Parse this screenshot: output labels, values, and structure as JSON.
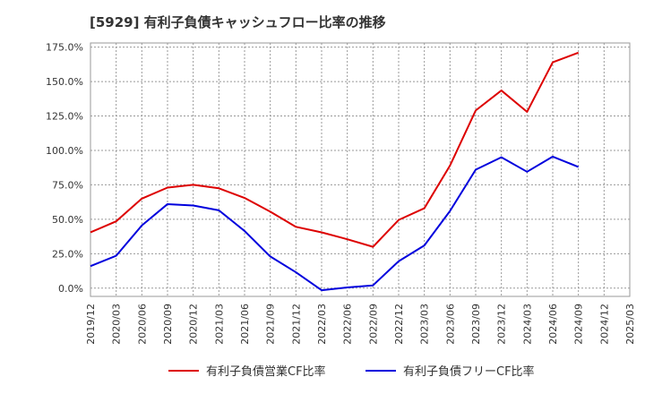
{
  "title": "[5929]  有利子負債キャッシュフロー比率の推移",
  "chart_data": {
    "type": "line",
    "title": "[5929]  有利子負債キャッシュフロー比率の推移",
    "xlabel": "",
    "ylabel": "",
    "x": [
      "2019/12",
      "2020/03",
      "2020/06",
      "2020/09",
      "2020/12",
      "2021/03",
      "2021/06",
      "2021/09",
      "2021/12",
      "2022/03",
      "2022/06",
      "2022/09",
      "2022/12",
      "2023/03",
      "2023/06",
      "2023/09",
      "2023/12",
      "2024/03",
      "2024/06",
      "2024/09",
      "2024/12",
      "2025/03"
    ],
    "ylim": [
      -6,
      178
    ],
    "yticks": [
      "0.0%",
      "25.0%",
      "50.0%",
      "75.0%",
      "100.0%",
      "125.0%",
      "150.0%",
      "175.0%"
    ],
    "ytick_values": [
      0,
      25,
      50,
      75,
      100,
      125,
      150,
      175
    ],
    "grid": true,
    "legend_position": "bottom",
    "series": [
      {
        "name": "有利子負債営業CF比率",
        "color": "#dd0000",
        "values": [
          40.5,
          48.5,
          65.0,
          73.0,
          75.0,
          72.5,
          65.5,
          55.5,
          44.5,
          40.5,
          35.5,
          30.0,
          49.5,
          58.0,
          89.0,
          129.0,
          143.5,
          128.0,
          164.0,
          171.0,
          null,
          null
        ]
      },
      {
        "name": "有利子負債フリーCF比率",
        "color": "#0000dd",
        "values": [
          16.0,
          23.5,
          45.5,
          61.0,
          60.0,
          56.5,
          41.5,
          23.0,
          11.5,
          -1.5,
          0.5,
          2.0,
          19.5,
          31.0,
          56.0,
          86.0,
          95.0,
          84.5,
          95.5,
          88.0,
          null,
          null
        ]
      }
    ]
  }
}
